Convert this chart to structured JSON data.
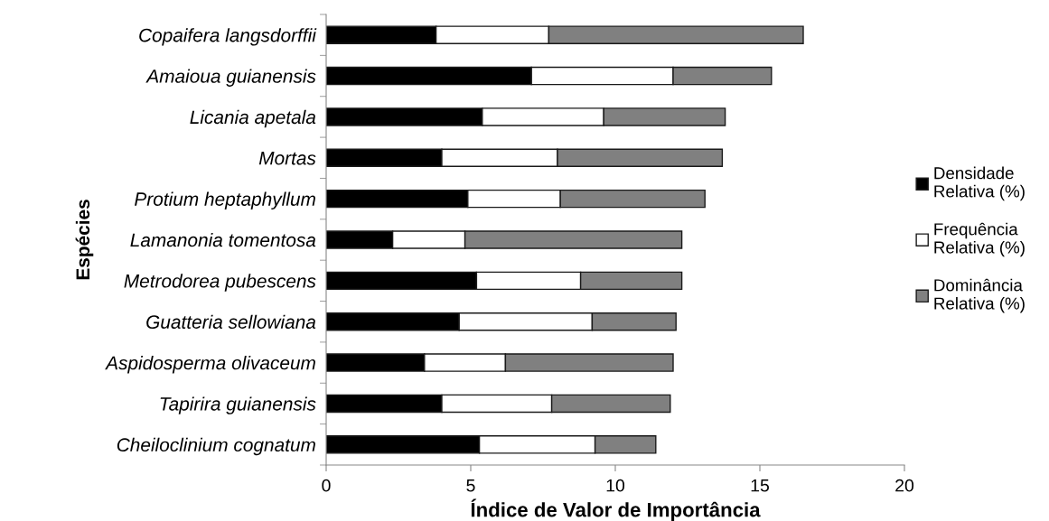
{
  "chart_data": {
    "type": "bar",
    "orientation": "horizontal",
    "stacked": true,
    "xlabel": "Índice de Valor de Importância",
    "ylabel": "Espécies",
    "categories": [
      "Copaifera langsdorffii",
      "Amaioua guianensis",
      "Licania apetala",
      "Mortas",
      "Protium heptaphyllum",
      "Lamanonia tomentosa",
      "Metrodorea pubescens",
      "Guatteria sellowiana",
      "Aspidosperma olivaceum",
      "Tapirira guianensis",
      "Cheiloclinium cognatum"
    ],
    "series": [
      {
        "name": "Densidade Relativa (%)",
        "color": "#000000",
        "values": [
          3.8,
          7.1,
          5.4,
          4.0,
          4.9,
          2.3,
          5.2,
          4.6,
          3.4,
          4.0,
          5.3
        ]
      },
      {
        "name": "Frequência Relativa (%)",
        "color": "#ffffff",
        "values": [
          3.9,
          4.9,
          4.2,
          4.0,
          3.2,
          2.5,
          3.6,
          4.6,
          2.8,
          3.8,
          4.0
        ]
      },
      {
        "name": "Dominância Relativa (%)",
        "color": "#808080",
        "values": [
          8.8,
          3.4,
          4.2,
          5.7,
          5.0,
          7.5,
          3.5,
          2.9,
          5.8,
          4.1,
          2.1
        ]
      }
    ],
    "xlim": [
      0,
      20
    ],
    "xticks": [
      0,
      5,
      10,
      15,
      20
    ],
    "grid": false,
    "legend": "right"
  }
}
